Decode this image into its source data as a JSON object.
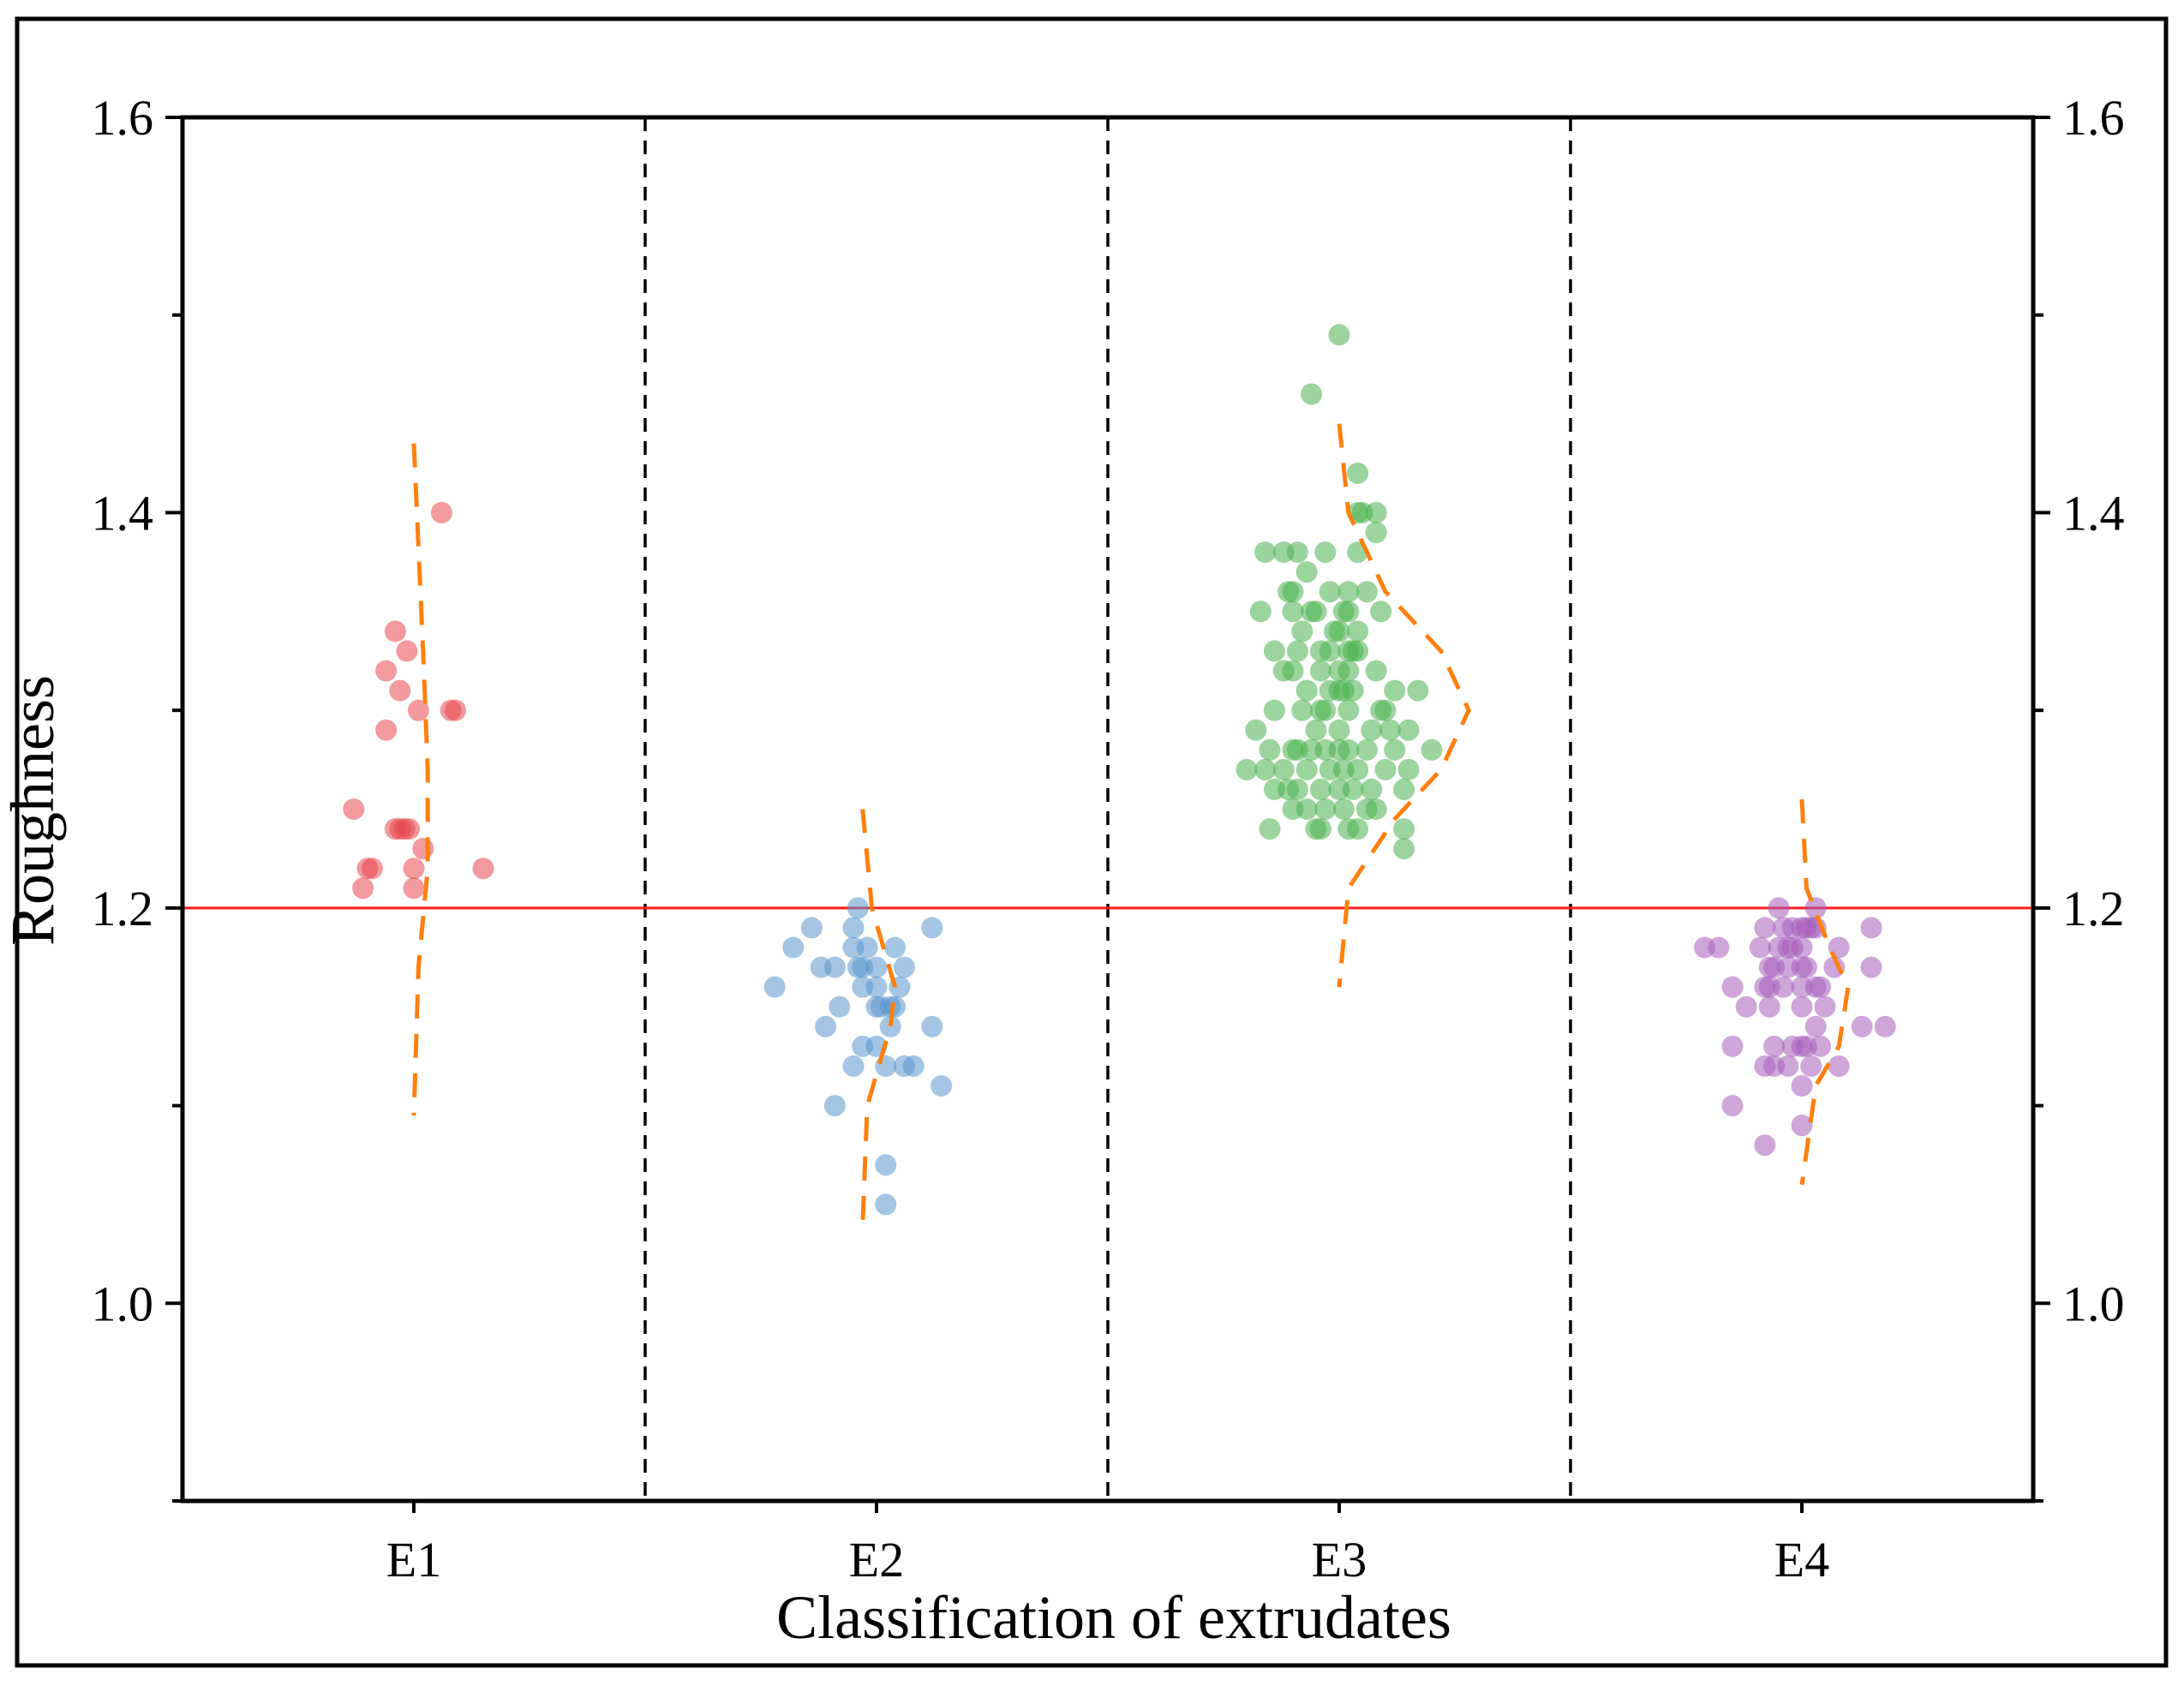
{
  "chart_data": {
    "type": "scatter",
    "xlabel": "Classification of extrudates",
    "ylabel": "Roughness",
    "categories": [
      "E1",
      "E2",
      "E3",
      "E4"
    ],
    "ylim": [
      0.9,
      1.6
    ],
    "yticks": [
      1.0,
      1.2,
      1.4,
      1.6
    ],
    "ytick_labels": [
      "1.0",
      "1.2",
      "1.4",
      "1.6"
    ],
    "minor_yticks": [
      0.9,
      1.1,
      1.3,
      1.5
    ],
    "reference_line": {
      "y": 1.2,
      "color": "#ff1a1a"
    },
    "separators_between_categories": true,
    "series": [
      {
        "name": "E1",
        "color": "#e8474c",
        "points": [
          [
            -0.04,
            1.34
          ],
          [
            -0.06,
            1.32
          ],
          [
            -0.015,
            1.33
          ],
          [
            -0.03,
            1.31
          ],
          [
            -0.06,
            1.29
          ],
          [
            0.01,
            1.3
          ],
          [
            0.08,
            1.3
          ],
          [
            0.09,
            1.3
          ],
          [
            0.06,
            1.4
          ],
          [
            -0.13,
            1.25
          ],
          [
            -0.04,
            1.24
          ],
          [
            -0.03,
            1.24
          ],
          [
            -0.01,
            1.24
          ],
          [
            -0.02,
            1.24
          ],
          [
            0.02,
            1.23
          ],
          [
            -0.1,
            1.22
          ],
          [
            -0.09,
            1.22
          ],
          [
            0.0,
            1.22
          ],
          [
            0.15,
            1.22
          ],
          [
            -0.11,
            1.21
          ],
          [
            0.0,
            1.21
          ]
        ],
        "distribution_curve": [
          [
            0.0,
            1.435
          ],
          [
            0.02,
            1.33
          ],
          [
            0.03,
            1.27
          ],
          [
            0.03,
            1.22
          ],
          [
            0.01,
            1.17
          ],
          [
            0.0,
            1.095
          ]
        ]
      },
      {
        "name": "E2",
        "color": "#5a95cc",
        "points": [
          [
            -0.04,
            1.2
          ],
          [
            -0.14,
            1.19
          ],
          [
            -0.05,
            1.19
          ],
          [
            0.12,
            1.19
          ],
          [
            -0.18,
            1.18
          ],
          [
            -0.05,
            1.18
          ],
          [
            -0.02,
            1.18
          ],
          [
            0.04,
            1.18
          ],
          [
            -0.12,
            1.17
          ],
          [
            -0.09,
            1.17
          ],
          [
            -0.04,
            1.17
          ],
          [
            -0.03,
            1.17
          ],
          [
            0.0,
            1.17
          ],
          [
            0.06,
            1.17
          ],
          [
            -0.22,
            1.16
          ],
          [
            -0.03,
            1.16
          ],
          [
            0.0,
            1.16
          ],
          [
            0.05,
            1.16
          ],
          [
            -0.08,
            1.15
          ],
          [
            0.0,
            1.15
          ],
          [
            0.01,
            1.15
          ],
          [
            0.03,
            1.15
          ],
          [
            0.04,
            1.15
          ],
          [
            -0.11,
            1.14
          ],
          [
            0.03,
            1.14
          ],
          [
            0.12,
            1.14
          ],
          [
            -0.03,
            1.13
          ],
          [
            0.0,
            1.13
          ],
          [
            -0.05,
            1.12
          ],
          [
            0.02,
            1.12
          ],
          [
            0.06,
            1.12
          ],
          [
            0.08,
            1.12
          ],
          [
            0.14,
            1.11
          ],
          [
            -0.09,
            1.1
          ],
          [
            0.02,
            1.07
          ],
          [
            0.02,
            1.05
          ]
        ],
        "distribution_curve": [
          [
            -0.03,
            1.25
          ],
          [
            -0.01,
            1.2
          ],
          [
            0.04,
            1.16
          ],
          [
            0.03,
            1.14
          ],
          [
            -0.02,
            1.1
          ],
          [
            -0.03,
            1.04
          ]
        ]
      },
      {
        "name": "E3",
        "color": "#49b04c",
        "points": [
          [
            0.0,
            1.49
          ],
          [
            -0.06,
            1.46
          ],
          [
            0.04,
            1.42
          ],
          [
            0.04,
            1.4
          ],
          [
            0.05,
            1.4
          ],
          [
            0.08,
            1.4
          ],
          [
            0.08,
            1.39
          ],
          [
            -0.16,
            1.38
          ],
          [
            -0.12,
            1.38
          ],
          [
            -0.09,
            1.38
          ],
          [
            -0.03,
            1.38
          ],
          [
            0.04,
            1.38
          ],
          [
            -0.07,
            1.37
          ],
          [
            -0.11,
            1.36
          ],
          [
            -0.1,
            1.36
          ],
          [
            -0.02,
            1.36
          ],
          [
            0.02,
            1.36
          ],
          [
            0.06,
            1.36
          ],
          [
            -0.17,
            1.35
          ],
          [
            -0.1,
            1.35
          ],
          [
            -0.06,
            1.35
          ],
          [
            -0.05,
            1.35
          ],
          [
            0.01,
            1.35
          ],
          [
            0.02,
            1.35
          ],
          [
            0.09,
            1.35
          ],
          [
            -0.08,
            1.34
          ],
          [
            -0.01,
            1.34
          ],
          [
            0.0,
            1.34
          ],
          [
            0.04,
            1.34
          ],
          [
            -0.14,
            1.33
          ],
          [
            -0.09,
            1.33
          ],
          [
            -0.04,
            1.33
          ],
          [
            -0.02,
            1.33
          ],
          [
            0.02,
            1.33
          ],
          [
            0.03,
            1.33
          ],
          [
            0.04,
            1.33
          ],
          [
            -0.12,
            1.32
          ],
          [
            -0.1,
            1.32
          ],
          [
            -0.04,
            1.32
          ],
          [
            0.0,
            1.32
          ],
          [
            0.02,
            1.32
          ],
          [
            0.08,
            1.32
          ],
          [
            -0.07,
            1.31
          ],
          [
            -0.02,
            1.31
          ],
          [
            0.0,
            1.31
          ],
          [
            0.01,
            1.31
          ],
          [
            0.03,
            1.31
          ],
          [
            0.12,
            1.31
          ],
          [
            0.17,
            1.31
          ],
          [
            -0.14,
            1.3
          ],
          [
            -0.08,
            1.3
          ],
          [
            -0.04,
            1.3
          ],
          [
            -0.03,
            1.3
          ],
          [
            0.02,
            1.3
          ],
          [
            0.09,
            1.3
          ],
          [
            0.1,
            1.3
          ],
          [
            -0.18,
            1.29
          ],
          [
            -0.05,
            1.29
          ],
          [
            0.0,
            1.29
          ],
          [
            0.07,
            1.29
          ],
          [
            0.11,
            1.29
          ],
          [
            0.15,
            1.29
          ],
          [
            -0.15,
            1.28
          ],
          [
            -0.1,
            1.28
          ],
          [
            -0.09,
            1.28
          ],
          [
            -0.06,
            1.28
          ],
          [
            -0.03,
            1.28
          ],
          [
            0.0,
            1.28
          ],
          [
            0.02,
            1.28
          ],
          [
            0.06,
            1.28
          ],
          [
            0.12,
            1.28
          ],
          [
            0.2,
            1.28
          ],
          [
            -0.2,
            1.27
          ],
          [
            -0.16,
            1.27
          ],
          [
            -0.12,
            1.27
          ],
          [
            -0.07,
            1.27
          ],
          [
            -0.02,
            1.27
          ],
          [
            0.01,
            1.27
          ],
          [
            0.04,
            1.27
          ],
          [
            0.1,
            1.27
          ],
          [
            0.15,
            1.27
          ],
          [
            -0.14,
            1.26
          ],
          [
            -0.11,
            1.26
          ],
          [
            -0.09,
            1.26
          ],
          [
            -0.04,
            1.26
          ],
          [
            0.0,
            1.26
          ],
          [
            0.03,
            1.26
          ],
          [
            0.07,
            1.26
          ],
          [
            0.14,
            1.26
          ],
          [
            -0.1,
            1.25
          ],
          [
            -0.07,
            1.25
          ],
          [
            -0.03,
            1.25
          ],
          [
            0.01,
            1.25
          ],
          [
            0.06,
            1.25
          ],
          [
            0.08,
            1.25
          ],
          [
            -0.15,
            1.24
          ],
          [
            -0.05,
            1.24
          ],
          [
            -0.04,
            1.24
          ],
          [
            0.02,
            1.24
          ],
          [
            0.04,
            1.24
          ],
          [
            0.14,
            1.24
          ],
          [
            0.14,
            1.23
          ]
        ],
        "distribution_curve": [
          [
            0.0,
            1.445
          ],
          [
            0.02,
            1.4
          ],
          [
            0.1,
            1.36
          ],
          [
            0.22,
            1.33
          ],
          [
            0.28,
            1.3
          ],
          [
            0.22,
            1.27
          ],
          [
            0.12,
            1.245
          ],
          [
            0.02,
            1.21
          ],
          [
            0.0,
            1.16
          ]
        ]
      },
      {
        "name": "E4",
        "color": "#a65cb9",
        "points": [
          [
            -0.05,
            1.2
          ],
          [
            0.03,
            1.2
          ],
          [
            -0.08,
            1.19
          ],
          [
            -0.04,
            1.19
          ],
          [
            -0.02,
            1.19
          ],
          [
            0.0,
            1.19
          ],
          [
            0.01,
            1.19
          ],
          [
            0.02,
            1.19
          ],
          [
            0.03,
            1.19
          ],
          [
            0.15,
            1.19
          ],
          [
            -0.21,
            1.18
          ],
          [
            -0.18,
            1.18
          ],
          [
            -0.09,
            1.18
          ],
          [
            -0.05,
            1.18
          ],
          [
            -0.03,
            1.18
          ],
          [
            -0.02,
            1.18
          ],
          [
            0.0,
            1.18
          ],
          [
            0.08,
            1.18
          ],
          [
            -0.07,
            1.17
          ],
          [
            -0.06,
            1.17
          ],
          [
            -0.03,
            1.17
          ],
          [
            0.0,
            1.17
          ],
          [
            0.01,
            1.17
          ],
          [
            0.07,
            1.17
          ],
          [
            0.15,
            1.17
          ],
          [
            -0.15,
            1.16
          ],
          [
            -0.08,
            1.16
          ],
          [
            -0.07,
            1.16
          ],
          [
            -0.04,
            1.16
          ],
          [
            0.0,
            1.16
          ],
          [
            0.03,
            1.16
          ],
          [
            0.04,
            1.16
          ],
          [
            -0.12,
            1.15
          ],
          [
            -0.07,
            1.15
          ],
          [
            0.0,
            1.15
          ],
          [
            0.05,
            1.15
          ],
          [
            0.03,
            1.14
          ],
          [
            0.13,
            1.14
          ],
          [
            0.18,
            1.14
          ],
          [
            -0.15,
            1.13
          ],
          [
            -0.06,
            1.13
          ],
          [
            -0.02,
            1.13
          ],
          [
            0.0,
            1.13
          ],
          [
            0.01,
            1.13
          ],
          [
            0.04,
            1.13
          ],
          [
            -0.08,
            1.12
          ],
          [
            -0.06,
            1.12
          ],
          [
            -0.03,
            1.12
          ],
          [
            0.02,
            1.12
          ],
          [
            0.08,
            1.12
          ],
          [
            0.0,
            1.11
          ],
          [
            -0.15,
            1.1
          ],
          [
            0.0,
            1.09
          ],
          [
            -0.08,
            1.08
          ]
        ],
        "distribution_curve": [
          [
            0.0,
            1.255
          ],
          [
            0.01,
            1.21
          ],
          [
            0.06,
            1.18
          ],
          [
            0.1,
            1.16
          ],
          [
            0.08,
            1.13
          ],
          [
            0.03,
            1.11
          ],
          [
            0.0,
            1.06
          ]
        ]
      }
    ],
    "colors": {
      "curve": "#ff7f0e",
      "separator": "#000000"
    }
  }
}
